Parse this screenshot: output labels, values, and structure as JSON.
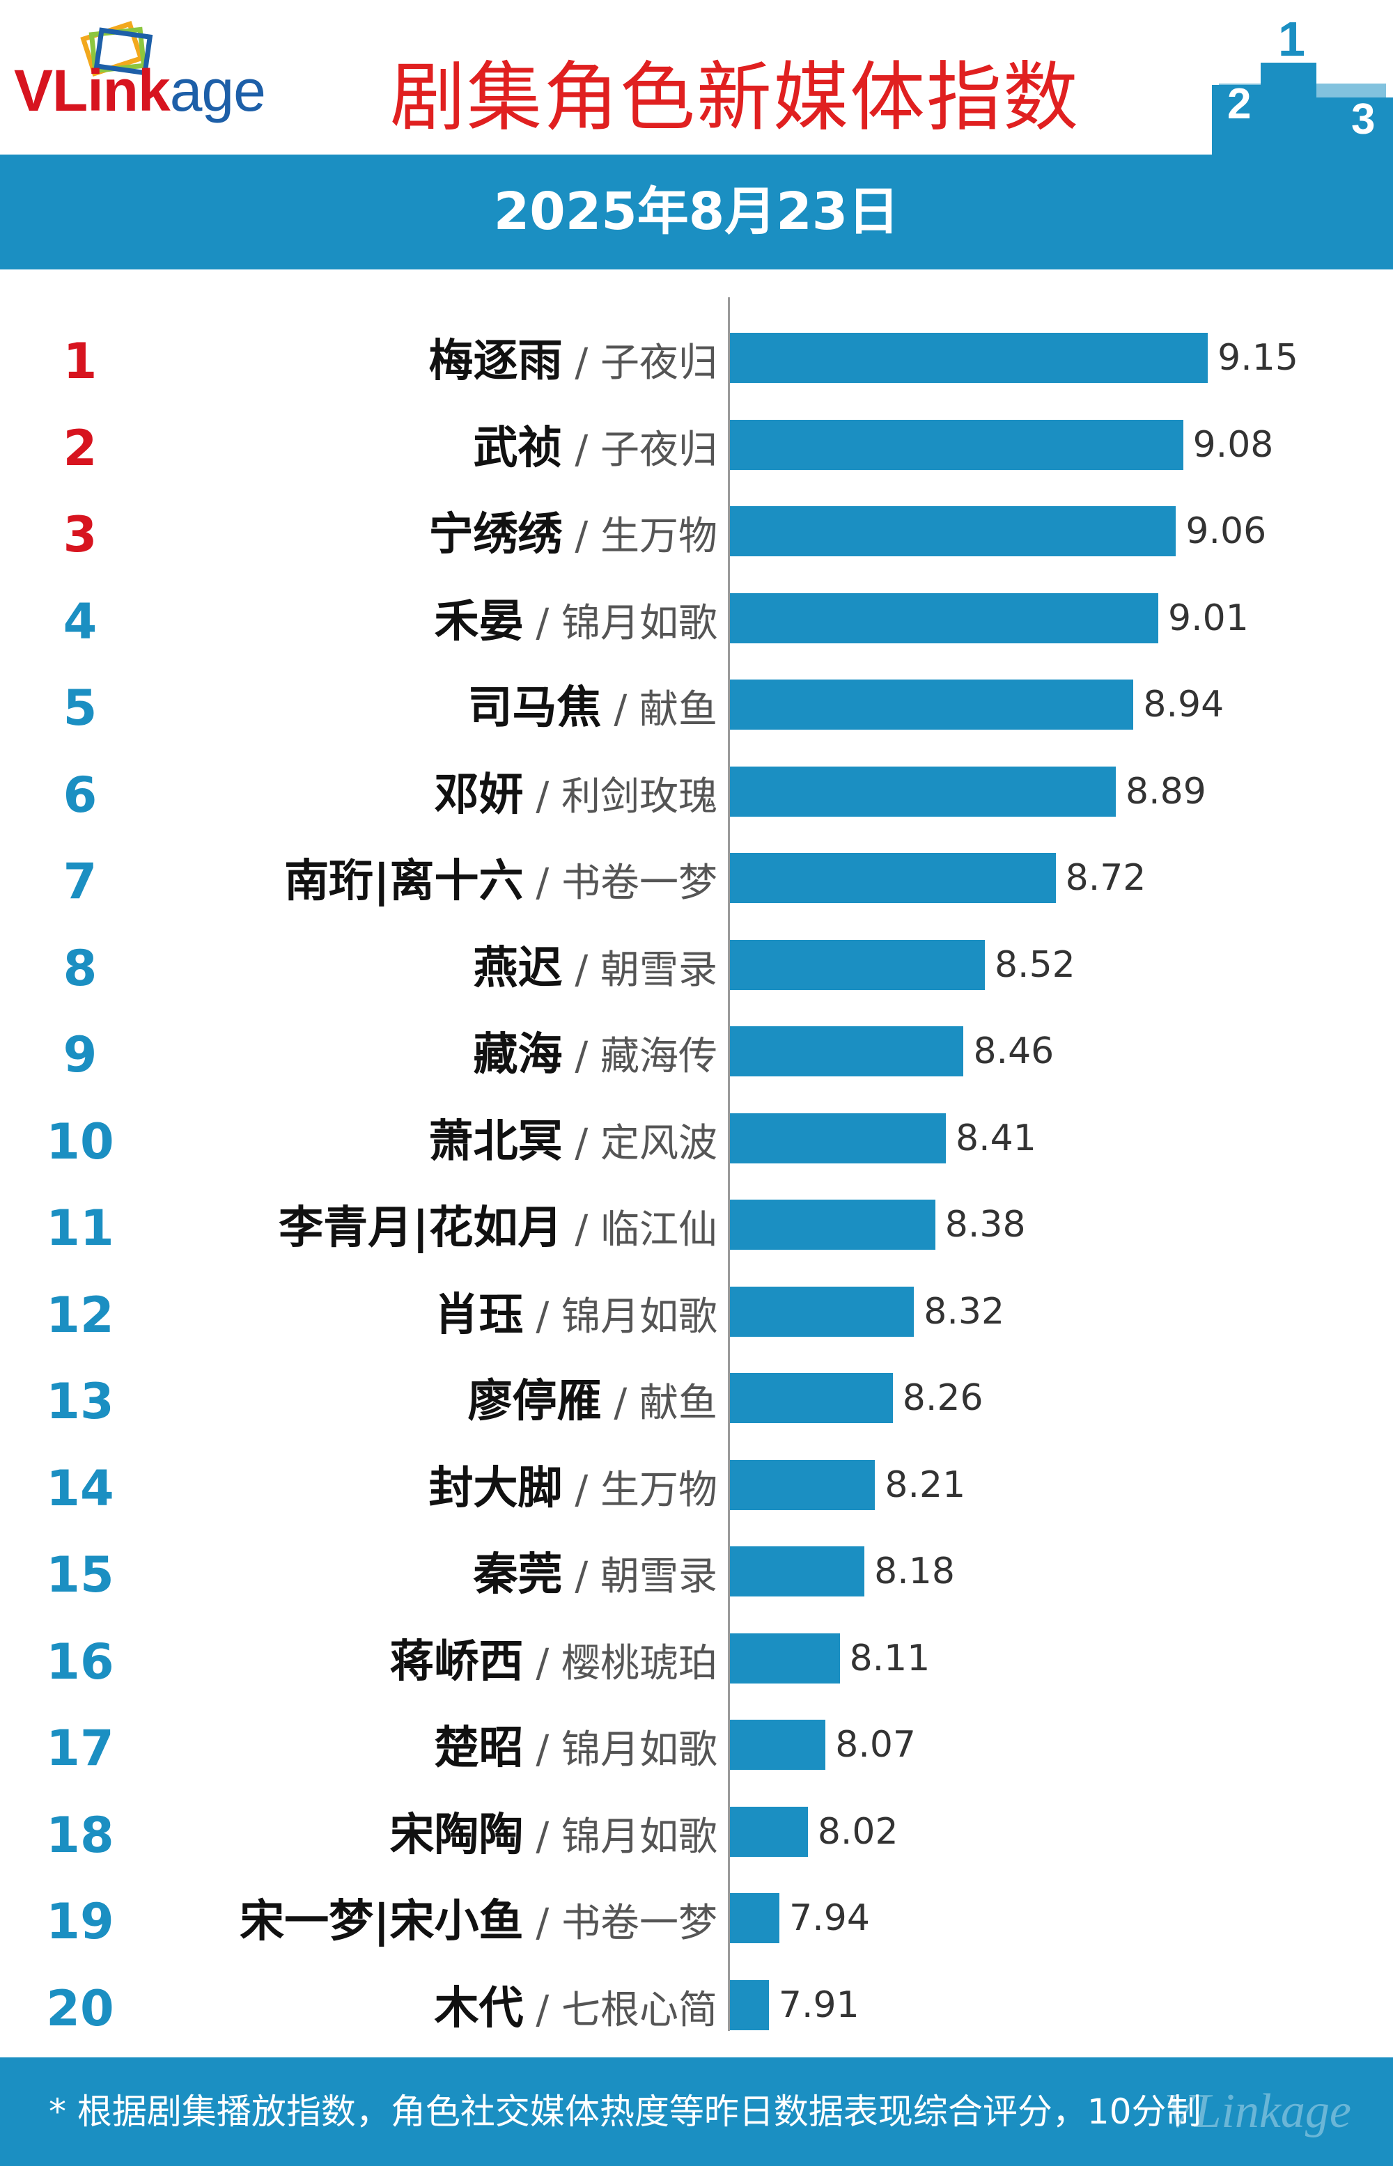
{
  "header": {
    "logo": {
      "prefix": "V",
      "main": "Link",
      "suffix": "age"
    },
    "title": "剧集角色新媒体指数",
    "podium_digits": [
      "2",
      "1",
      "3"
    ]
  },
  "date": "2025年8月23日",
  "colors": {
    "accent": "#1b8fc2",
    "title_red": "#e02020",
    "rank_top": "#d7141f",
    "rank_rest": "#1b8fc2"
  },
  "chart_data": {
    "type": "bar",
    "orientation": "horizontal",
    "xlim": [
      7.8,
      9.25
    ],
    "categories": [
      "梅逐雨 / 子夜归",
      "武祯 / 子夜归",
      "宁绣绣 / 生万物",
      "禾晏 / 锦月如歌",
      "司马焦 / 献鱼",
      "邓妍 / 利剑玫瑰",
      "南珩|离十六 / 书卷一梦",
      "燕迟 / 朝雪录",
      "藏海 / 藏海传",
      "萧北冥 / 定风波",
      "李青月|花如月 / 临江仙",
      "肖珏 / 锦月如歌",
      "廖停雁 / 献鱼",
      "封大脚 / 生万物",
      "秦莞 / 朝雪录",
      "蒋峤西 / 樱桃琥珀",
      "楚昭 / 锦月如歌",
      "宋陶陶 / 锦月如歌",
      "宋一梦|宋小鱼 / 书卷一梦",
      "木代 / 七根心简"
    ],
    "rows": [
      {
        "rank": "1",
        "name": "梅逐雨",
        "drama": "/ 子夜归",
        "value": 9.15
      },
      {
        "rank": "2",
        "name": "武祯",
        "drama": "/ 子夜归",
        "value": 9.08
      },
      {
        "rank": "3",
        "name": "宁绣绣",
        "drama": "/ 生万物",
        "value": 9.06
      },
      {
        "rank": "4",
        "name": "禾晏",
        "drama": "/ 锦月如歌",
        "value": 9.01
      },
      {
        "rank": "5",
        "name": "司马焦",
        "drama": "/ 献鱼",
        "value": 8.94
      },
      {
        "rank": "6",
        "name": "邓妍",
        "drama": "/ 利剑玫瑰",
        "value": 8.89
      },
      {
        "rank": "7",
        "name": "南珩|离十六",
        "drama": "/ 书卷一梦",
        "value": 8.72
      },
      {
        "rank": "8",
        "name": "燕迟",
        "drama": "/ 朝雪录",
        "value": 8.52
      },
      {
        "rank": "9",
        "name": "藏海",
        "drama": "/ 藏海传",
        "value": 8.46
      },
      {
        "rank": "10",
        "name": "萧北冥",
        "drama": "/ 定风波",
        "value": 8.41
      },
      {
        "rank": "11",
        "name": "李青月|花如月",
        "drama": "/ 临江仙",
        "value": 8.38
      },
      {
        "rank": "12",
        "name": "肖珏",
        "drama": "/ 锦月如歌",
        "value": 8.32
      },
      {
        "rank": "13",
        "name": "廖停雁",
        "drama": "/ 献鱼",
        "value": 8.26
      },
      {
        "rank": "14",
        "name": "封大脚",
        "drama": "/ 生万物",
        "value": 8.21
      },
      {
        "rank": "15",
        "name": "秦莞",
        "drama": "/ 朝雪录",
        "value": 8.18
      },
      {
        "rank": "16",
        "name": "蒋峤西",
        "drama": "/ 樱桃琥珀",
        "value": 8.11
      },
      {
        "rank": "17",
        "name": "楚昭",
        "drama": "/ 锦月如歌",
        "value": 8.07
      },
      {
        "rank": "18",
        "name": "宋陶陶",
        "drama": "/ 锦月如歌",
        "value": 8.02
      },
      {
        "rank": "19",
        "name": "宋一梦|宋小鱼",
        "drama": "/ 书卷一梦",
        "value": 7.94
      },
      {
        "rank": "20",
        "name": "木代",
        "drama": "/ 七根心简",
        "value": 7.91
      }
    ],
    "values": [
      9.15,
      9.08,
      9.06,
      9.01,
      8.94,
      8.89,
      8.72,
      8.52,
      8.46,
      8.41,
      8.38,
      8.32,
      8.26,
      8.21,
      8.18,
      8.11,
      8.07,
      8.02,
      7.94,
      7.91
    ]
  },
  "footer": {
    "note": "* 根据剧集播放指数，角色社交媒体热度等昨日数据表现综合评分，10分制",
    "watermark": "VLinkage"
  }
}
